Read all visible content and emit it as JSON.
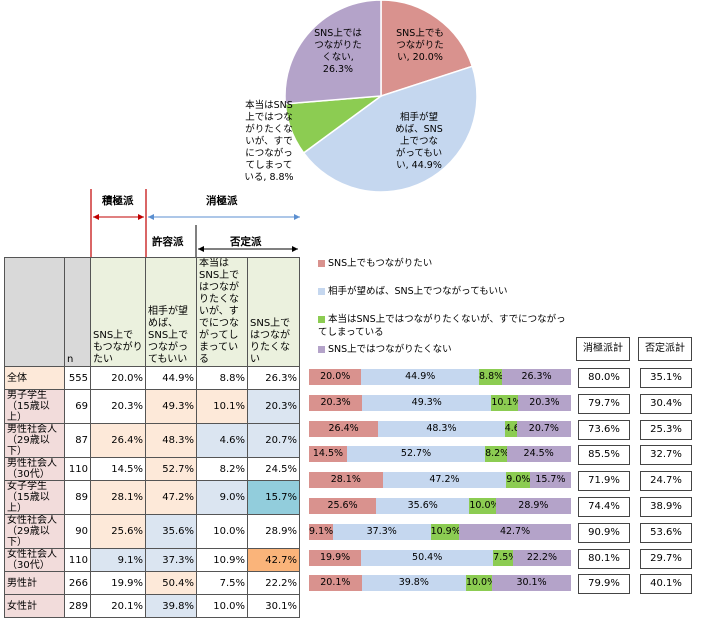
{
  "colors": {
    "c1": "#d9928e",
    "c2": "#c5d7ef",
    "c3": "#8ccc52",
    "c4": "#b4a3c9"
  },
  "pie": {
    "slices": [
      {
        "label": "SNS上でも\nつながりた\nい, 20.0%",
        "value": 20.0,
        "color": "#d9928e"
      },
      {
        "label": "相手が望\nめば、SNS\n上でつな\nがってもい\nい, 44.9%",
        "value": 44.9,
        "color": "#c5d7ef"
      },
      {
        "label": "本当はSNS\n上ではつな\nがりたくな\nいが、すで\nにつながっ\nてしまって\nいる, 8.8%",
        "value": 8.8,
        "color": "#8ccc52"
      },
      {
        "label": "SNS上では\nつながりた\nくない,\n26.3%",
        "value": 26.3,
        "color": "#b4a3c9"
      }
    ]
  },
  "groups": {
    "sekkyoku": "積極派",
    "shokyoku": "消極派",
    "kyoyo": "許容派",
    "hitei": "否定派"
  },
  "table": {
    "headers": [
      "",
      "n",
      "SNS上でもつながりたい",
      "相手が望めば、SNS上でつながってもいい",
      "本当はSNS上ではつながりたくないが、すでにつながってしまっている",
      "SNS上ではつながりたくない"
    ],
    "rows": [
      {
        "cat": "全体",
        "n": "555",
        "v": [
          "20.0%",
          "44.9%",
          "8.8%",
          "26.3%"
        ]
      },
      {
        "cat": "男子学生（15歳以上）",
        "n": "69",
        "v": [
          "20.3%",
          "49.3%",
          "10.1%",
          "20.3%"
        ]
      },
      {
        "cat": "男性社会人（29歳以下）",
        "n": "87",
        "v": [
          "26.4%",
          "48.3%",
          "4.6%",
          "20.7%"
        ]
      },
      {
        "cat": "男性社会人（30代）",
        "n": "110",
        "v": [
          "14.5%",
          "52.7%",
          "8.2%",
          "24.5%"
        ]
      },
      {
        "cat": "女子学生（15歳以上）",
        "n": "89",
        "v": [
          "28.1%",
          "47.2%",
          "9.0%",
          "15.7%"
        ]
      },
      {
        "cat": "女性社会人（29歳以下）",
        "n": "90",
        "v": [
          "25.6%",
          "35.6%",
          "10.0%",
          "28.9%"
        ]
      },
      {
        "cat": "女性社会人（30代）",
        "n": "110",
        "v": [
          "9.1%",
          "37.3%",
          "10.9%",
          "42.7%"
        ]
      },
      {
        "cat": "男性計",
        "n": "266",
        "v": [
          "19.9%",
          "50.4%",
          "7.5%",
          "22.2%"
        ]
      },
      {
        "cat": "女性計",
        "n": "289",
        "v": [
          "20.1%",
          "39.8%",
          "10.0%",
          "30.1%"
        ]
      }
    ]
  },
  "legend": [
    {
      "label": "SNS上でもつながりたい",
      "color": "#d9928e"
    },
    {
      "label": "相手が望めば、SNS上でつながってもいい",
      "color": "#c5d7ef"
    },
    {
      "label": "本当はSNS上ではつながりたくないが、すでにつながってしまっている",
      "color": "#8ccc52"
    },
    {
      "label": "SNS上ではつながりたくない",
      "color": "#b4a3c9"
    }
  ],
  "chart_data": {
    "type": "bar",
    "stacked": true,
    "categories": [
      "全体",
      "男子学生（15歳以上）",
      "男性社会人（29歳以下）",
      "男性社会人（30代）",
      "女子学生（15歳以上）",
      "女性社会人（29歳以下）",
      "女性社会人（30代）",
      "男性計",
      "女性計"
    ],
    "series": [
      {
        "name": "SNS上でもつながりたい",
        "values": [
          20.0,
          20.3,
          26.4,
          14.5,
          28.1,
          25.6,
          9.1,
          19.9,
          20.1
        ]
      },
      {
        "name": "相手が望めば、SNS上でつながってもいい",
        "values": [
          44.9,
          49.3,
          48.3,
          52.7,
          47.2,
          35.6,
          37.3,
          50.4,
          39.8
        ]
      },
      {
        "name": "本当はSNS上ではつながりたくないが、すでにつながってしまっている",
        "values": [
          8.8,
          10.1,
          4.6,
          8.2,
          9.0,
          10.0,
          10.9,
          7.5,
          10.0
        ]
      },
      {
        "name": "SNS上ではつながりたくない",
        "values": [
          26.3,
          20.3,
          20.7,
          24.5,
          15.7,
          28.9,
          42.7,
          22.2,
          30.1
        ]
      }
    ],
    "xlim": [
      0,
      100
    ]
  },
  "summary": {
    "headers": [
      "消極派計",
      "否定派計"
    ],
    "shokyoku": [
      "80.0%",
      "79.7%",
      "73.6%",
      "85.5%",
      "71.9%",
      "74.4%",
      "90.9%",
      "80.1%",
      "79.9%"
    ],
    "hitei": [
      "35.1%",
      "30.4%",
      "25.3%",
      "32.7%",
      "24.7%",
      "38.9%",
      "53.6%",
      "29.7%",
      "40.1%"
    ]
  }
}
